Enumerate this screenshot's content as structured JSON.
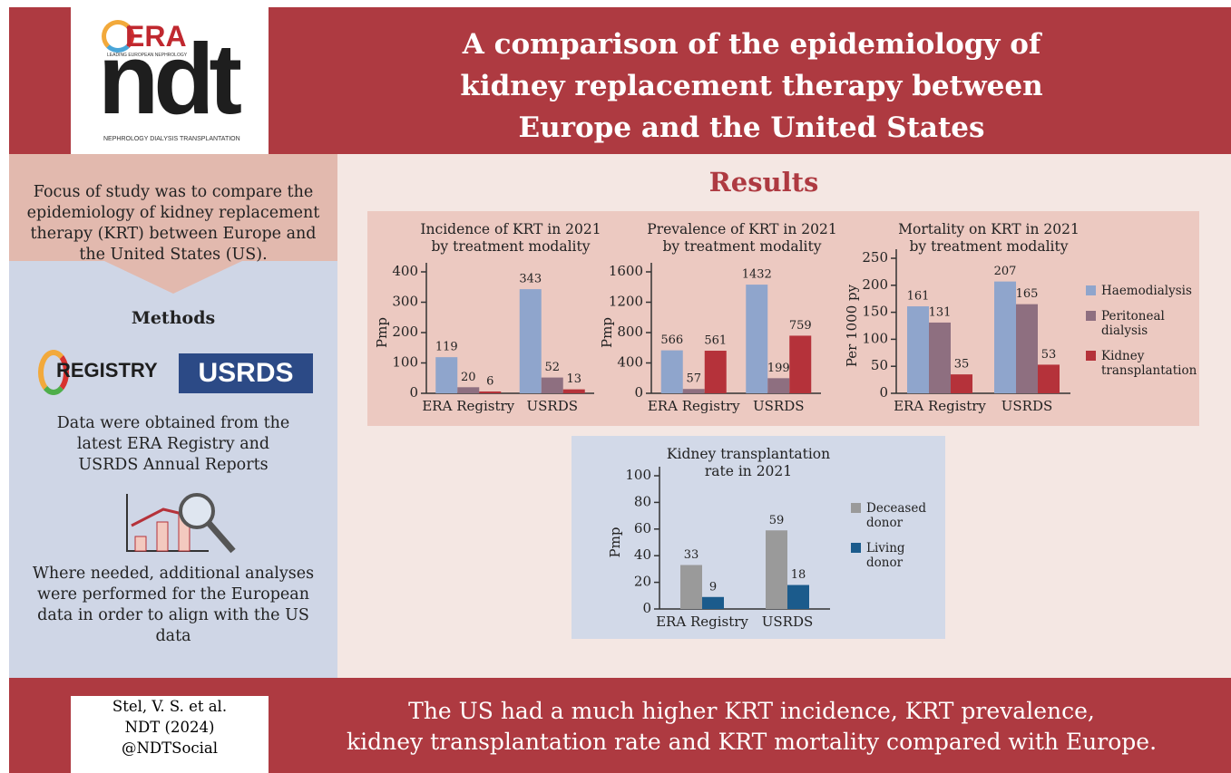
{
  "header": {
    "logo": {
      "era": "ERA",
      "tagline": "LEADING EUROPEAN NEPHROLOGY",
      "ndt": "ndt",
      "subtitle": "NEPHROLOGY DIALYSIS TRANSPLANTATION"
    },
    "title": [
      "A comparison of the epidemiology of",
      "kidney replacement therapy between",
      "Europe and the United States"
    ]
  },
  "sidebar": {
    "focus": "Focus of study was to compare the epidemiology of kidney replacement therapy (KRT) between Europe and the United States (US).",
    "methods_title": "Methods",
    "logos": [
      "REGISTRY",
      "USRDS"
    ],
    "data_source": "Data were obtained from the latest ERA Registry and USRDS Annual Reports",
    "analyses": "Where needed, additional analyses were performed for the European data in order to align with the US data"
  },
  "results_title": "Results",
  "chart_data": [
    {
      "type": "bar",
      "title": [
        "Incidence of KRT in 2021",
        "by treatment modality"
      ],
      "ylabel": "Pmp",
      "categories": [
        "ERA Registry",
        "USRDS"
      ],
      "series": [
        {
          "name": "Haemodialysis",
          "color": "#8fa5cc",
          "values": [
            119,
            343
          ]
        },
        {
          "name": "Peritoneal dialysis",
          "color": "#8e6f80",
          "values": [
            20,
            52
          ]
        },
        {
          "name": "Kidney transplantation",
          "color": "#b5323a",
          "values": [
            6,
            13
          ]
        }
      ],
      "ylim": [
        0,
        400
      ],
      "yticks": [
        0,
        100,
        200,
        300,
        400
      ],
      "legend": false
    },
    {
      "type": "bar",
      "title": [
        "Prevalence of KRT in 2021",
        "by treatment modality"
      ],
      "ylabel": "Pmp",
      "categories": [
        "ERA Registry",
        "USRDS"
      ],
      "series": [
        {
          "name": "Haemodialysis",
          "color": "#8fa5cc",
          "values": [
            566,
            1432
          ]
        },
        {
          "name": "Peritoneal dialysis",
          "color": "#8e6f80",
          "values": [
            57,
            199
          ]
        },
        {
          "name": "Kidney transplantation",
          "color": "#b5323a",
          "values": [
            561,
            759
          ]
        }
      ],
      "ylim": [
        0,
        1600
      ],
      "yticks": [
        0,
        400,
        800,
        1200,
        1600
      ],
      "legend": false
    },
    {
      "type": "bar",
      "title": [
        "Mortality on KRT in 2021",
        "by treatment modality"
      ],
      "ylabel": "Per 1000 py",
      "categories": [
        "ERA Registry",
        "USRDS"
      ],
      "series": [
        {
          "name": "Haemodialysis",
          "color": "#8fa5cc",
          "values": [
            161,
            207
          ]
        },
        {
          "name": "Peritoneal dialysis",
          "color": "#8e6f80",
          "values": [
            131,
            165
          ]
        },
        {
          "name": "Kidney transplantation",
          "color": "#b5323a",
          "values": [
            35,
            53
          ]
        }
      ],
      "ylim": [
        0,
        250
      ],
      "yticks": [
        0,
        50,
        100,
        150,
        200,
        250
      ],
      "legend": true
    },
    {
      "type": "bar",
      "title": [
        "Kidney transplantation",
        "rate in 2021"
      ],
      "ylabel": "Pmp",
      "categories": [
        "ERA Registry",
        "USRDS"
      ],
      "series": [
        {
          "name": "Deceased donor",
          "color": "#9a9a9a",
          "values": [
            33,
            59
          ]
        },
        {
          "name": "Living donor",
          "color": "#1b5b8c",
          "values": [
            9,
            18
          ]
        }
      ],
      "ylim": [
        0,
        100
      ],
      "yticks": [
        0,
        20,
        40,
        60,
        80,
        100
      ],
      "legend": true
    }
  ],
  "footer": {
    "citation": [
      "Stel, V. S. et al.",
      "NDT (2024)",
      "@NDTSocial"
    ],
    "conclusion": [
      "The US had a much higher KRT incidence, KRT prevalence,",
      "kidney transplantation rate and KRT mortality compared with Europe."
    ]
  }
}
